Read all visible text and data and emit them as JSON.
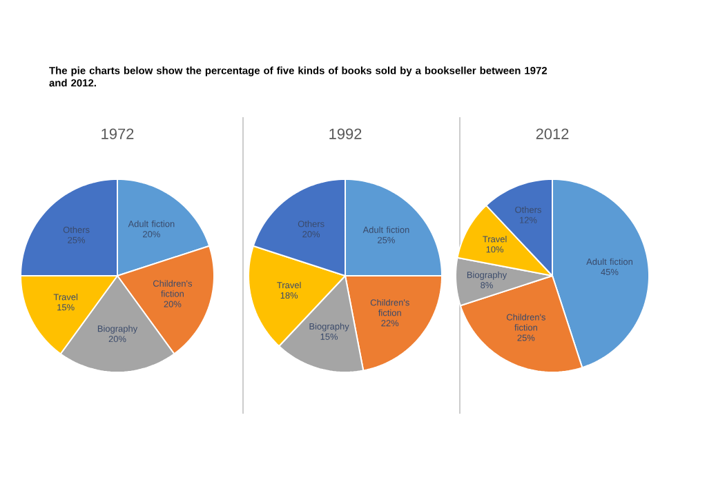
{
  "chart_data": [
    {
      "type": "pie",
      "title": "1972",
      "annotations": [
        "The pie charts below show the percentage of five kinds of books sold by a bookseller between 1972 and 2012."
      ],
      "categories": [
        "Adult fiction",
        "Children's fiction",
        "Biography",
        "Travel",
        "Others"
      ],
      "values": [
        20,
        20,
        20,
        15,
        25
      ],
      "value_labels": [
        "20%",
        "20%",
        "20%",
        "15%",
        "25%"
      ],
      "colors": [
        "#5b9bd5",
        "#ed7d31",
        "#a5a5a5",
        "#ffc000",
        "#4472c4"
      ]
    },
    {
      "type": "pie",
      "title": "1992",
      "categories": [
        "Adult fiction",
        "Children's fiction",
        "Biography",
        "Travel",
        "Others"
      ],
      "values": [
        25,
        22,
        15,
        18,
        20
      ],
      "value_labels": [
        "25%",
        "22%",
        "15%",
        "18%",
        "20%"
      ],
      "colors": [
        "#5b9bd5",
        "#ed7d31",
        "#a5a5a5",
        "#ffc000",
        "#4472c4"
      ]
    },
    {
      "type": "pie",
      "title": "2012",
      "categories": [
        "Adult fiction",
        "Children's fiction",
        "Biography",
        "Travel",
        "Others"
      ],
      "values": [
        45,
        25,
        8,
        10,
        12
      ],
      "value_labels": [
        "45%",
        "25%",
        "8%",
        "10%",
        "12%"
      ],
      "colors": [
        "#5b9bd5",
        "#ed7d31",
        "#a5a5a5",
        "#ffc000",
        "#4472c4"
      ]
    }
  ]
}
